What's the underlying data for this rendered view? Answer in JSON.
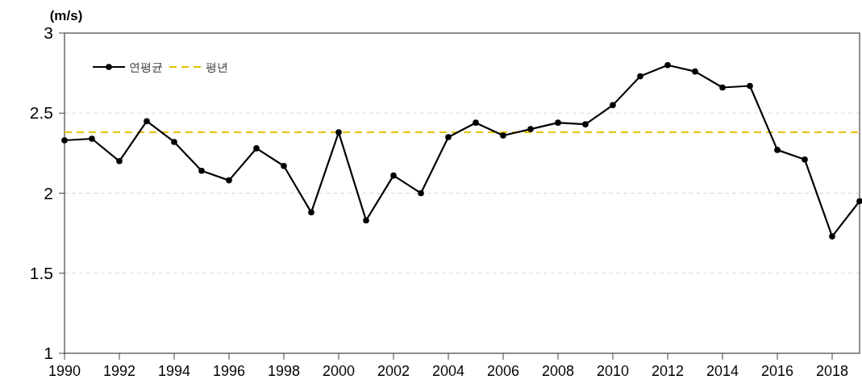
{
  "chart_data": {
    "type": "line",
    "ylabel": "(m/s)",
    "x": [
      1990,
      1991,
      1992,
      1993,
      1994,
      1995,
      1996,
      1997,
      1998,
      1999,
      2000,
      2001,
      2002,
      2003,
      2004,
      2005,
      2006,
      2007,
      2008,
      2009,
      2010,
      2011,
      2012,
      2013,
      2014,
      2015,
      2016,
      2017,
      2018,
      2019
    ],
    "series": [
      {
        "name": "연평균",
        "color": "#000000",
        "values": [
          2.33,
          2.34,
          2.2,
          2.45,
          2.32,
          2.14,
          2.08,
          2.28,
          2.17,
          1.88,
          2.38,
          1.83,
          2.11,
          2.0,
          2.35,
          2.44,
          2.36,
          2.4,
          2.44,
          2.43,
          2.55,
          2.73,
          2.8,
          2.76,
          2.66,
          2.67,
          2.27,
          2.21,
          1.73,
          1.95
        ]
      }
    ],
    "ref_lines": [
      {
        "axis": "y",
        "value": 2.38,
        "label": "평년",
        "color": "#e6c200",
        "line_style": "dashed"
      }
    ],
    "xlim": [
      1990,
      2019
    ],
    "xticks": [
      1990,
      1992,
      1994,
      1996,
      1998,
      2000,
      2002,
      2004,
      2006,
      2008,
      2010,
      2012,
      2014,
      2016,
      2018
    ],
    "ylim": [
      1,
      3
    ],
    "yticks": [
      1,
      1.5,
      2,
      2.5,
      3
    ],
    "grid": "y",
    "legend": "top left",
    "marker": "circle"
  }
}
